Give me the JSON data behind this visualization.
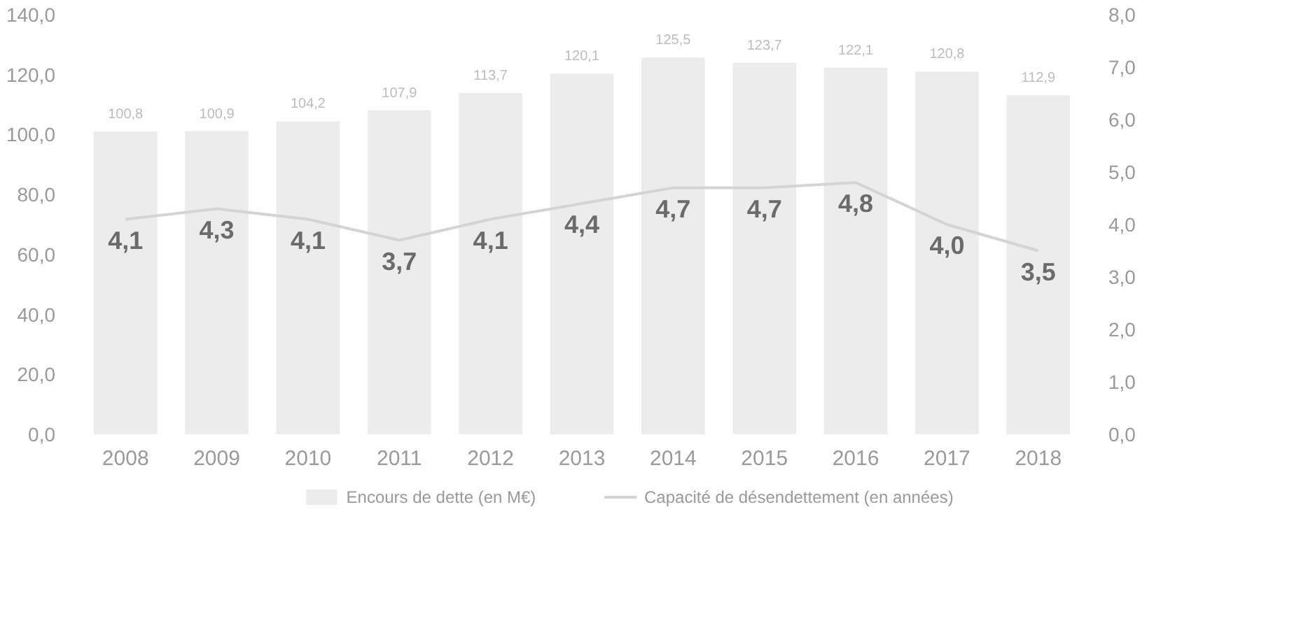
{
  "chart_data": {
    "type": "bar",
    "categories": [
      "2008",
      "2009",
      "2010",
      "2011",
      "2012",
      "2013",
      "2014",
      "2015",
      "2016",
      "2017",
      "2018"
    ],
    "series": [
      {
        "name": "Encours de dette (en M€)",
        "color": "#ececec",
        "values": [
          100.8,
          100.9,
          104.2,
          107.9,
          113.7,
          120.1,
          125.5,
          123.7,
          122.1,
          120.8,
          112.9
        ],
        "value_labels": [
          "100,8",
          "100,9",
          "104,2",
          "107,9",
          "113,7",
          "120,1",
          "125,5",
          "123,7",
          "122,1",
          "120,8",
          "112,9"
        ]
      },
      {
        "name": "Capacité de désendettement (en années)",
        "type": "line",
        "axis": "y2",
        "color": "#d4d4d4",
        "values": [
          4.1,
          4.3,
          4.1,
          3.7,
          4.1,
          4.4,
          4.7,
          4.7,
          4.8,
          4.0,
          3.5
        ],
        "value_labels": [
          "4,1",
          "4,3",
          "4,1",
          "3,7",
          "4,1",
          "4,4",
          "4,7",
          "4,7",
          "4,8",
          "4,0",
          "3,5"
        ]
      }
    ],
    "ylim": [
      0,
      140
    ],
    "yticks": [
      {
        "value": 0,
        "label": "0,0"
      },
      {
        "value": 20,
        "label": "20,0"
      },
      {
        "value": 40,
        "label": "40,0"
      },
      {
        "value": 60,
        "label": "60,0"
      },
      {
        "value": 80,
        "label": "80,0"
      },
      {
        "value": 100,
        "label": "100,0"
      },
      {
        "value": 120,
        "label": "120,0"
      },
      {
        "value": 140,
        "label": "140,0"
      }
    ],
    "y2lim": [
      0,
      8
    ],
    "y2ticks": [
      {
        "value": 0,
        "label": "0,0"
      },
      {
        "value": 1,
        "label": "1,0"
      },
      {
        "value": 2,
        "label": "2,0"
      },
      {
        "value": 3,
        "label": "3,0"
      },
      {
        "value": 4,
        "label": "4,0"
      },
      {
        "value": 5,
        "label": "5,0"
      },
      {
        "value": 6,
        "label": "6,0"
      },
      {
        "value": 7,
        "label": "7,0"
      },
      {
        "value": 8,
        "label": "8,0"
      }
    ],
    "legend": "bottom",
    "grid": false
  }
}
